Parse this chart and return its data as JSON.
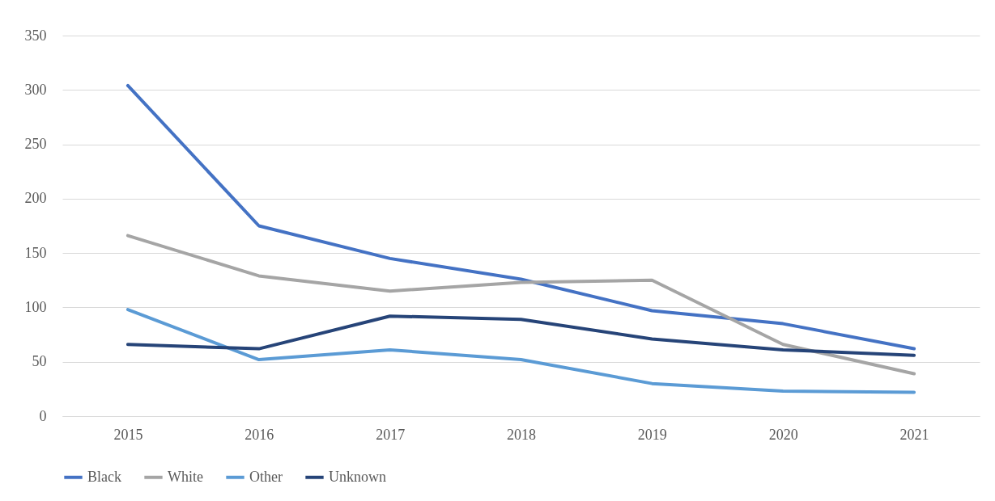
{
  "chart_data": {
    "type": "line",
    "categories": [
      "2015",
      "2016",
      "2017",
      "2018",
      "2019",
      "2020",
      "2021"
    ],
    "series": [
      {
        "name": "Black",
        "color": "#4472c4",
        "values": [
          304,
          175,
          145,
          126,
          97,
          85,
          62
        ]
      },
      {
        "name": "White",
        "color": "#a5a5a5",
        "values": [
          166,
          129,
          115,
          123,
          125,
          66,
          39
        ]
      },
      {
        "name": "Other",
        "color": "#5b9bd5",
        "values": [
          98,
          52,
          61,
          52,
          30,
          23,
          22
        ]
      },
      {
        "name": "Unknown",
        "color": "#264478",
        "values": [
          66,
          62,
          92,
          89,
          71,
          61,
          56
        ]
      }
    ],
    "ylim": [
      0,
      350
    ],
    "yticks": [
      0,
      50,
      100,
      150,
      200,
      250,
      300,
      350
    ],
    "grid": "y",
    "legend": "bottom",
    "marker": "none",
    "line_style": "solid"
  }
}
